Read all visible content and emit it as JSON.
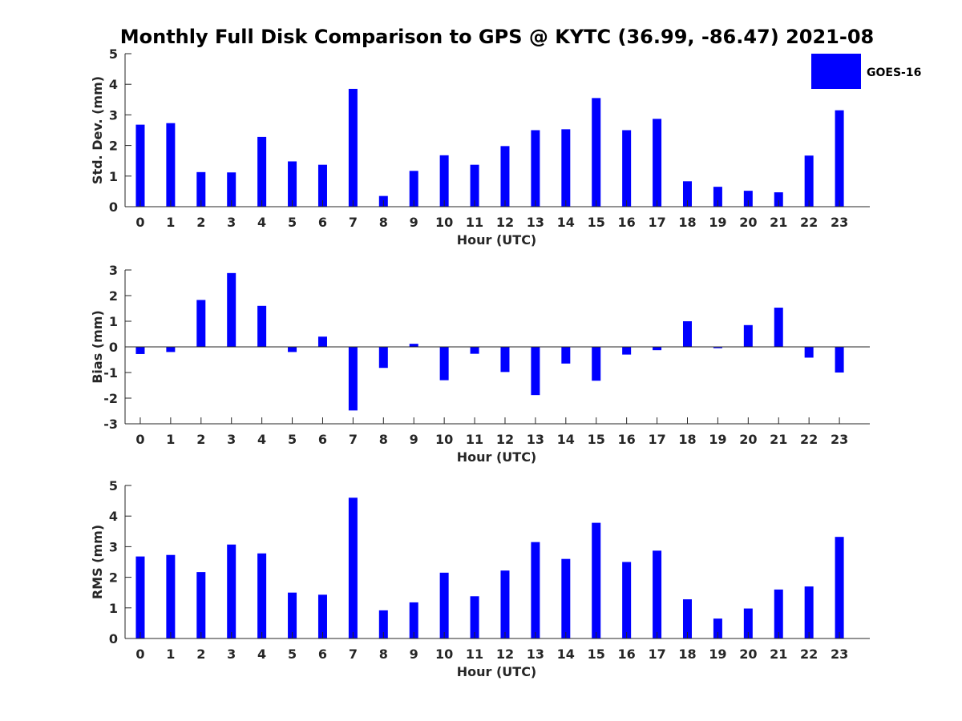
{
  "figure_title": "Monthly Full Disk Comparison to GPS @ KYTC (36.99, -86.47) 2021-08",
  "legend": {
    "label": "GOES-16",
    "color": "#0000ff",
    "placement": "top-right"
  },
  "bar_color": "#0000ff",
  "chart_data": [
    {
      "type": "bar",
      "title": "Monthly Full Disk Comparison to GPS @ KYTC (36.99, -86.47) 2021-08",
      "xlabel": "Hour (UTC)",
      "ylabel": "Std. Dev. (mm)",
      "ylim": [
        0,
        5
      ],
      "yticks": [
        0,
        1,
        2,
        3,
        4,
        5
      ],
      "categories": [
        "0",
        "1",
        "2",
        "3",
        "4",
        "5",
        "6",
        "7",
        "8",
        "9",
        "10",
        "11",
        "12",
        "13",
        "14",
        "15",
        "16",
        "17",
        "18",
        "19",
        "20",
        "21",
        "22",
        "23"
      ],
      "series": [
        {
          "name": "GOES-16",
          "values": [
            2.68,
            2.73,
            1.13,
            1.12,
            2.28,
            1.48,
            1.37,
            3.85,
            0.35,
            1.17,
            1.68,
            1.37,
            1.98,
            2.5,
            2.53,
            3.55,
            2.5,
            2.87,
            0.83,
            0.65,
            0.52,
            0.47,
            1.67,
            3.15
          ]
        }
      ]
    },
    {
      "type": "bar",
      "xlabel": "Hour (UTC)",
      "ylabel": "Bias (mm)",
      "ylim": [
        -3,
        3
      ],
      "yticks": [
        -3,
        -2,
        -1,
        0,
        1,
        2,
        3
      ],
      "categories": [
        "0",
        "1",
        "2",
        "3",
        "4",
        "5",
        "6",
        "7",
        "8",
        "9",
        "10",
        "11",
        "12",
        "13",
        "14",
        "15",
        "16",
        "17",
        "18",
        "19",
        "20",
        "21",
        "22",
        "23"
      ],
      "series": [
        {
          "name": "GOES-16",
          "values": [
            -0.28,
            -0.2,
            1.83,
            2.88,
            1.6,
            -0.2,
            0.4,
            -2.48,
            -0.82,
            0.12,
            -1.3,
            -0.27,
            -0.98,
            -1.88,
            -0.65,
            -1.32,
            -0.3,
            -0.13,
            1.0,
            -0.05,
            0.85,
            1.53,
            -0.42,
            -1.0
          ]
        }
      ]
    },
    {
      "type": "bar",
      "xlabel": "Hour (UTC)",
      "ylabel": "RMS (mm)",
      "ylim": [
        0,
        5
      ],
      "yticks": [
        0,
        1,
        2,
        3,
        4,
        5
      ],
      "categories": [
        "0",
        "1",
        "2",
        "3",
        "4",
        "5",
        "6",
        "7",
        "8",
        "9",
        "10",
        "11",
        "12",
        "13",
        "14",
        "15",
        "16",
        "17",
        "18",
        "19",
        "20",
        "21",
        "22",
        "23"
      ],
      "series": [
        {
          "name": "GOES-16",
          "values": [
            2.68,
            2.73,
            2.17,
            3.07,
            2.78,
            1.5,
            1.43,
            4.6,
            0.92,
            1.18,
            2.15,
            1.38,
            2.22,
            3.15,
            2.6,
            3.78,
            2.5,
            2.87,
            1.28,
            0.65,
            0.98,
            1.6,
            1.7,
            3.32
          ]
        }
      ]
    }
  ]
}
